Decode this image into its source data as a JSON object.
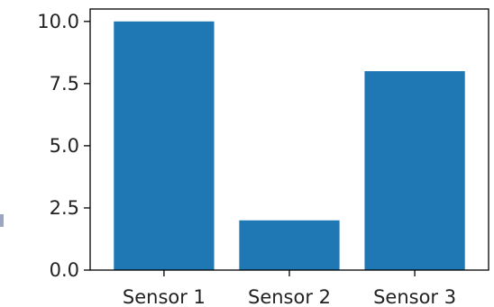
{
  "chart_data": {
    "type": "bar",
    "categories": [
      "Sensor 1",
      "Sensor 2",
      "Sensor 3"
    ],
    "values": [
      10,
      2,
      8
    ],
    "ylim": [
      0,
      10.5
    ],
    "yticks": [
      0.0,
      2.5,
      5.0,
      7.5,
      10.0
    ],
    "ytick_labels": [
      "0.0",
      "2.5",
      "5.0",
      "7.5",
      "10.0"
    ],
    "bar_color": "#1f77b4",
    "grid": false,
    "title": "",
    "xlabel": "",
    "ylabel": ""
  }
}
